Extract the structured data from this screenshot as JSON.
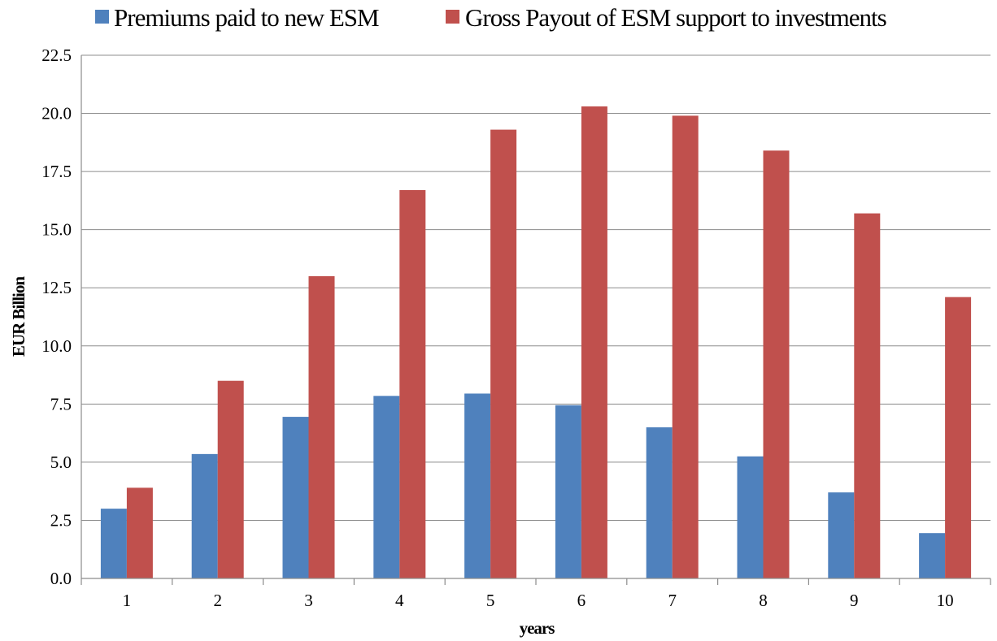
{
  "chart_data": {
    "type": "bar",
    "title": "",
    "xlabel": "years",
    "ylabel": "EUR Billion",
    "categories": [
      "1",
      "2",
      "3",
      "4",
      "5",
      "6",
      "7",
      "8",
      "9",
      "10"
    ],
    "ylim": [
      0,
      22.5
    ],
    "yticks": [
      "0.0",
      "2.5",
      "5.0",
      "7.5",
      "10.0",
      "12.5",
      "15.0",
      "17.5",
      "20.0",
      "22.5"
    ],
    "grid": true,
    "legend_position": "top",
    "series": [
      {
        "name": "Premiums paid to new ESM",
        "color": "#4f81bd",
        "values": [
          3.0,
          5.35,
          6.95,
          7.85,
          7.95,
          7.45,
          6.5,
          5.25,
          3.7,
          1.95
        ]
      },
      {
        "name": "Gross Payout of ESM support to investments",
        "color": "#c0504d",
        "values": [
          3.9,
          8.5,
          13.0,
          16.7,
          19.3,
          20.3,
          19.9,
          18.4,
          15.7,
          12.1
        ]
      }
    ]
  }
}
